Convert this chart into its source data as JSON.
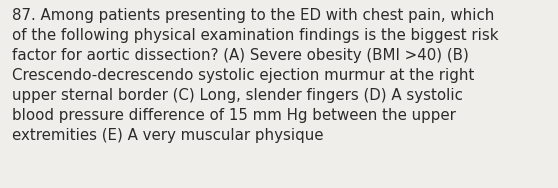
{
  "lines": [
    "87. Among patients presenting to the ED with chest pain, which",
    "of the following physical examination findings is the biggest risk",
    "factor for aortic dissection? (A) Severe obesity (BMI >40) (B)",
    "Crescendo-decrescendo systolic ejection murmur at the right",
    "upper sternal border (C) Long, slender fingers (D) A systolic",
    "blood pressure difference of 15 mm Hg between the upper",
    "extremities (E) A very muscular physique"
  ],
  "background_color": "#f0eeea",
  "text_color": "#2b2b2b",
  "font_size": 10.8,
  "fig_width": 5.58,
  "fig_height": 1.88,
  "dpi": 100
}
